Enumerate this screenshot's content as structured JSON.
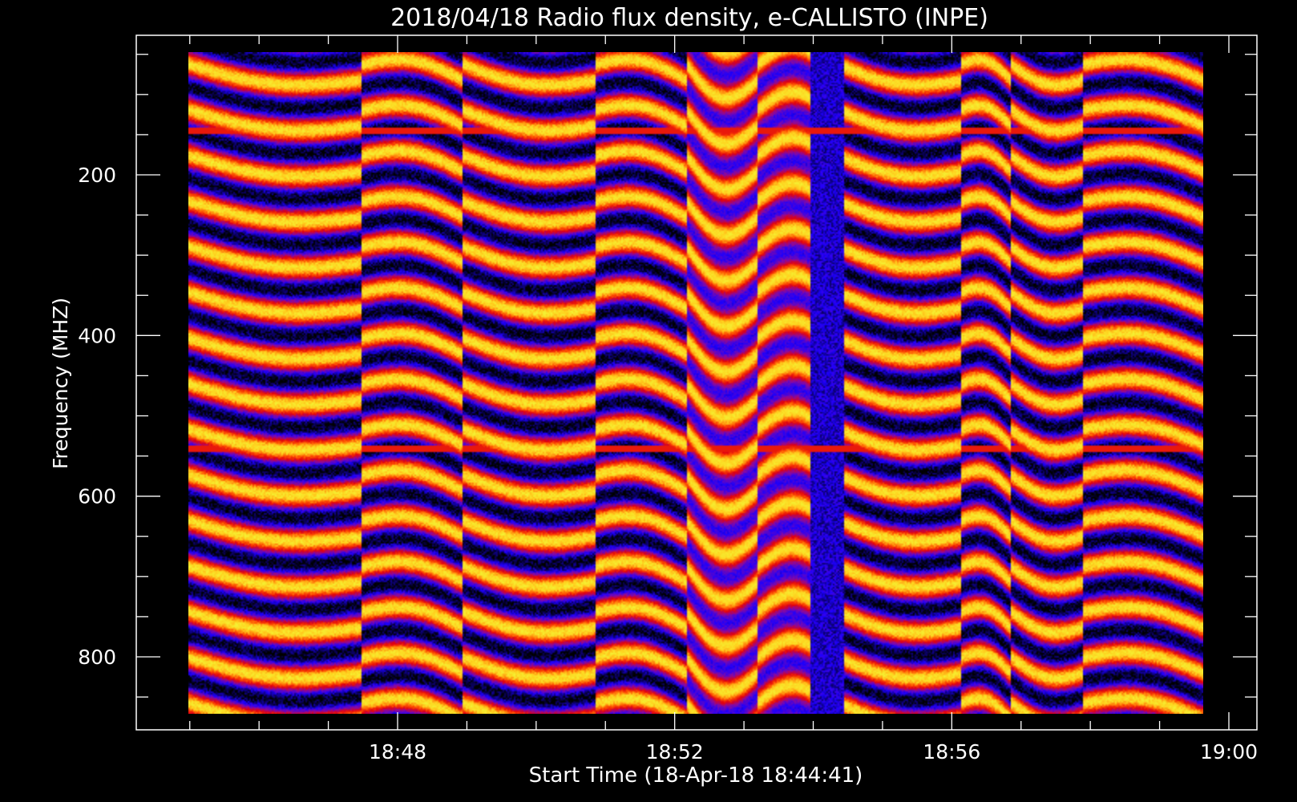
{
  "chart_data": {
    "type": "heatmap",
    "title": "2018/04/18  Radio flux density, e-CALLISTO (INPE)",
    "xlabel": "Start Time (18-Apr-18 18:44:41)",
    "ylabel": "Frequency (MHZ)",
    "x_range": [
      "18:44:41",
      "19:00:00"
    ],
    "y_range_mhz": [
      45,
      870
    ],
    "y_inverted": true,
    "x_ticks": [
      {
        "minute": 48,
        "label": "18:48"
      },
      {
        "minute": 52,
        "label": "18:52"
      },
      {
        "minute": 56,
        "label": "18:56"
      },
      {
        "minute": 60,
        "label": "19:00"
      }
    ],
    "y_ticks": [
      {
        "value": 200,
        "label": "200"
      },
      {
        "value": 400,
        "label": "400"
      },
      {
        "value": 600,
        "label": "600"
      },
      {
        "value": 800,
        "label": "800"
      }
    ],
    "colormap": [
      "#000000",
      "#1c00ff",
      "#8a0aa0",
      "#e00010",
      "#ff5000",
      "#ffd21e",
      "#f0ff3c"
    ],
    "minor_x_ticks_minutes": [
      45,
      46,
      47,
      49,
      50,
      51,
      53,
      54,
      55,
      57,
      58,
      59
    ],
    "minor_y_ticks_mhz": [
      50,
      100,
      150,
      250,
      300,
      350,
      450,
      500,
      550,
      650,
      700,
      750,
      850
    ]
  }
}
